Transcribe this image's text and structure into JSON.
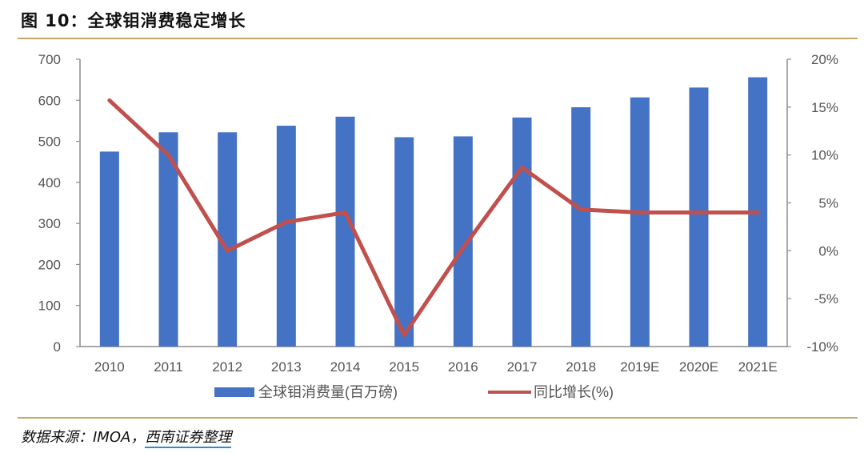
{
  "figure_title": "图 10：全球钼消费稳定增长",
  "source": {
    "prefix": "数据来源：IMOA，",
    "org": "西南证券整理"
  },
  "colors": {
    "bar": "#4472c4",
    "line": "#c0504d",
    "axis": "#8c8c8c",
    "rule": "#c9a766"
  },
  "chart_data": {
    "type": "bar",
    "categories": [
      "2010",
      "2011",
      "2012",
      "2013",
      "2014",
      "2015",
      "2016",
      "2017",
      "2018",
      "2019E",
      "2020E",
      "2021E"
    ],
    "series": [
      {
        "name": "全球钼消费量(百万磅)",
        "type": "bar",
        "axis": "left",
        "values": [
          475,
          522,
          522,
          538,
          560,
          510,
          512,
          558,
          583,
          607,
          631,
          656
        ]
      },
      {
        "name": "同比增长(%)",
        "type": "line",
        "axis": "right",
        "values": [
          15.7,
          10.0,
          0.0,
          3.0,
          4.0,
          -8.8,
          0.3,
          8.7,
          4.3,
          4.0,
          4.0,
          4.0
        ]
      }
    ],
    "y_left": {
      "ylim": [
        0,
        700
      ],
      "ticks": [
        "0",
        "100",
        "200",
        "300",
        "400",
        "500",
        "600",
        "700"
      ]
    },
    "y_right": {
      "ylim": [
        -10,
        20
      ],
      "ticks": [
        "-10%",
        "-5%",
        "0%",
        "5%",
        "10%",
        "15%",
        "20%"
      ]
    },
    "grid": false,
    "legend_position": "bottom-center"
  }
}
